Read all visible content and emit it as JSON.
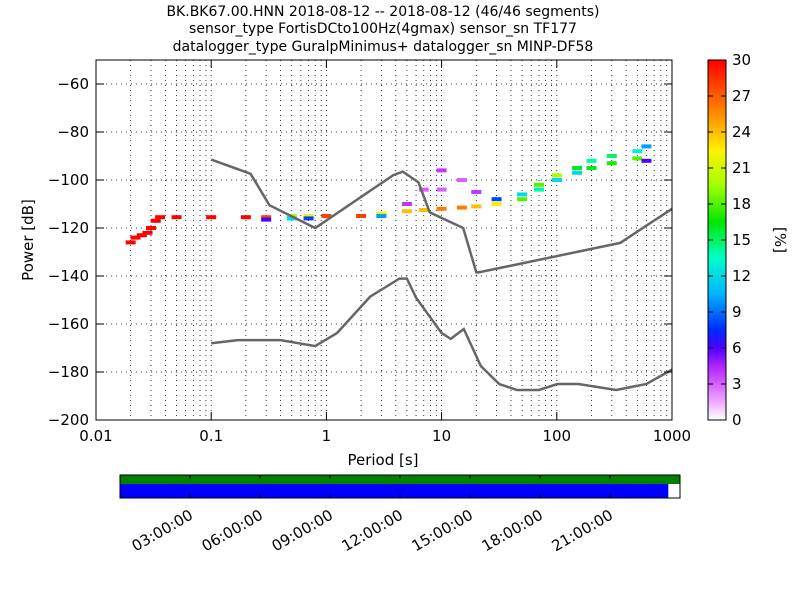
{
  "chart_data": {
    "type": "heatmap",
    "title_lines": [
      "BK.BK67.00.HNN   2018-08-12 -- 2018-08-12  (46/46 segments)",
      "sensor_type FortisDCto100Hz(4gmax) sensor_sn TF177",
      "datalogger_type GuralpMinimus+ datalogger_sn MINP-DF58"
    ],
    "xlabel": "Period [s]",
    "ylabel": "Power [dB]",
    "xscale": "log",
    "xlim": [
      0.01,
      1000
    ],
    "ylim": [
      -200,
      -50
    ],
    "x_ticks": [
      0.01,
      0.1,
      1,
      10,
      100,
      1000
    ],
    "x_tick_labels": [
      "0.01",
      "0.1",
      "1",
      "10",
      "100",
      "1000"
    ],
    "y_ticks": [
      -200,
      -180,
      -160,
      -140,
      -120,
      -100,
      -80,
      -60
    ],
    "y_tick_labels": [
      "−200",
      "−180",
      "−160",
      "−140",
      "−120",
      "−100",
      "−80",
      "−60"
    ],
    "grid": true,
    "colorbar": {
      "label": "[%]",
      "range": [
        0,
        30
      ],
      "ticks": [
        0,
        3,
        6,
        9,
        12,
        15,
        18,
        21,
        24,
        27,
        30
      ]
    },
    "noise_models": [
      {
        "name": "",
        "color": "#666666",
        "x": [
          0.1,
          0.22,
          0.32,
          0.8,
          3.8,
          4.6,
          6.3,
          7.9,
          15.4,
          20,
          21,
          354.8,
          1000
        ],
        "y": [
          -91.5,
          -97.4,
          -110.5,
          -120,
          -98,
          -96.5,
          -101,
          -113.5,
          -120,
          -138.5,
          -138.5,
          -126.2,
          -112
        ]
      },
      {
        "name": "",
        "color": "#666666",
        "x": [
          0.1,
          0.17,
          0.4,
          0.8,
          1.24,
          2.4,
          4.3,
          5,
          6,
          10,
          12,
          15.6,
          21.9,
          31.6,
          45,
          70,
          101,
          154,
          328,
          600,
          1000
        ],
        "y": [
          -168,
          -166.7,
          -166.7,
          -169.2,
          -163.7,
          -148.6,
          -141.1,
          -141.1,
          -149,
          -163.8,
          -166.2,
          -162.1,
          -177.5,
          -185,
          -187.5,
          -187.5,
          -185,
          -185,
          -187.5,
          -185,
          -179
        ]
      }
    ],
    "psd_density": [
      {
        "x": 0.02,
        "y": -126,
        "pct": 30
      },
      {
        "x": 0.022,
        "y": -124,
        "pct": 30
      },
      {
        "x": 0.025,
        "y": -123,
        "pct": 30
      },
      {
        "x": 0.028,
        "y": -122,
        "pct": 30
      },
      {
        "x": 0.03,
        "y": -120,
        "pct": 30
      },
      {
        "x": 0.033,
        "y": -117,
        "pct": 30
      },
      {
        "x": 0.036,
        "y": -115.5,
        "pct": 30
      },
      {
        "x": 0.05,
        "y": -115.5,
        "pct": 30
      },
      {
        "x": 0.1,
        "y": -115.5,
        "pct": 30
      },
      {
        "x": 0.2,
        "y": -115.5,
        "pct": 30
      },
      {
        "x": 0.3,
        "y": -115.5,
        "pct": 28
      },
      {
        "x": 0.3,
        "y": -116.5,
        "pct": 6
      },
      {
        "x": 0.5,
        "y": -115,
        "pct": 20
      },
      {
        "x": 0.5,
        "y": -116,
        "pct": 12
      },
      {
        "x": 0.7,
        "y": -115,
        "pct": 22
      },
      {
        "x": 0.7,
        "y": -116,
        "pct": 8
      },
      {
        "x": 1,
        "y": -115,
        "pct": 28
      },
      {
        "x": 2,
        "y": -115,
        "pct": 28
      },
      {
        "x": 3,
        "y": -114,
        "pct": 22
      },
      {
        "x": 3,
        "y": -115,
        "pct": 10
      },
      {
        "x": 5,
        "y": -113,
        "pct": 24
      },
      {
        "x": 5,
        "y": -110,
        "pct": 4
      },
      {
        "x": 7,
        "y": -112.5,
        "pct": 24
      },
      {
        "x": 7,
        "y": -104,
        "pct": 3
      },
      {
        "x": 10,
        "y": -112,
        "pct": 26
      },
      {
        "x": 10,
        "y": -96,
        "pct": 4
      },
      {
        "x": 10,
        "y": -104,
        "pct": 3
      },
      {
        "x": 15,
        "y": -111.5,
        "pct": 26
      },
      {
        "x": 15,
        "y": -100,
        "pct": 3
      },
      {
        "x": 20,
        "y": -111,
        "pct": 24
      },
      {
        "x": 20,
        "y": -105,
        "pct": 4
      },
      {
        "x": 30,
        "y": -110,
        "pct": 22
      },
      {
        "x": 30,
        "y": -108,
        "pct": 8
      },
      {
        "x": 50,
        "y": -108,
        "pct": 18
      },
      {
        "x": 50,
        "y": -106,
        "pct": 12
      },
      {
        "x": 70,
        "y": -104,
        "pct": 14
      },
      {
        "x": 70,
        "y": -102,
        "pct": 18
      },
      {
        "x": 100,
        "y": -98,
        "pct": 20
      },
      {
        "x": 100,
        "y": -100,
        "pct": 12
      },
      {
        "x": 150,
        "y": -95,
        "pct": 16
      },
      {
        "x": 150,
        "y": -97,
        "pct": 12
      },
      {
        "x": 200,
        "y": -92,
        "pct": 14
      },
      {
        "x": 200,
        "y": -95,
        "pct": 16
      },
      {
        "x": 300,
        "y": -90,
        "pct": 15
      },
      {
        "x": 300,
        "y": -93,
        "pct": 17
      },
      {
        "x": 500,
        "y": -88,
        "pct": 13
      },
      {
        "x": 500,
        "y": -91,
        "pct": 18
      },
      {
        "x": 600,
        "y": -86,
        "pct": 10
      },
      {
        "x": 600,
        "y": -92,
        "pct": 6
      }
    ],
    "time_axis": {
      "tick_labels": [
        "03:00:00",
        "06:00:00",
        "09:00:00",
        "12:00:00",
        "15:00:00",
        "18:00:00",
        "21:00:00"
      ],
      "tick_hours": [
        3,
        6,
        9,
        12,
        15,
        18,
        21
      ],
      "range_hours": [
        0,
        24
      ],
      "data_coverage_end_hours": 23.5,
      "coverage_color": "#0000ff",
      "segments_color": "#008000"
    }
  }
}
